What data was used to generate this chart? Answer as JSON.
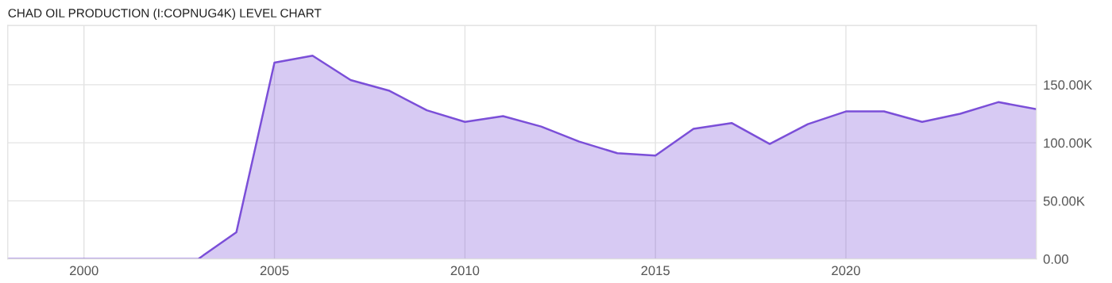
{
  "chart_data": {
    "type": "area",
    "title": "CHAD OIL PRODUCTION (I:COPNUG4K) LEVEL CHART",
    "x": [
      1998,
      1999,
      2000,
      2001,
      2002,
      2003,
      2004,
      2005,
      2006,
      2007,
      2008,
      2009,
      2010,
      2011,
      2012,
      2013,
      2014,
      2015,
      2016,
      2017,
      2018,
      2019,
      2020,
      2021,
      2022,
      2023,
      2024,
      2025
    ],
    "series": [
      {
        "color": "#7b4fd8",
        "values": [
          0,
          0,
          0,
          0,
          0,
          0,
          23,
          169,
          175,
          154,
          145,
          128,
          118,
          123,
          114,
          101,
          91,
          89,
          112,
          117,
          99,
          116,
          127,
          127,
          118,
          125,
          135,
          129
        ]
      }
    ],
    "xlim": [
      1998,
      2025
    ],
    "xticks": [
      2000,
      2005,
      2010,
      2015,
      2020
    ],
    "ylim": [
      0,
      201
    ],
    "yticks": [
      {
        "value": 0,
        "label": "0.00"
      },
      {
        "value": 50,
        "label": "50.00K"
      },
      {
        "value": 100,
        "label": "100.00K"
      },
      {
        "value": 150,
        "label": "150.00K"
      }
    ],
    "grid": true,
    "legend": false
  }
}
